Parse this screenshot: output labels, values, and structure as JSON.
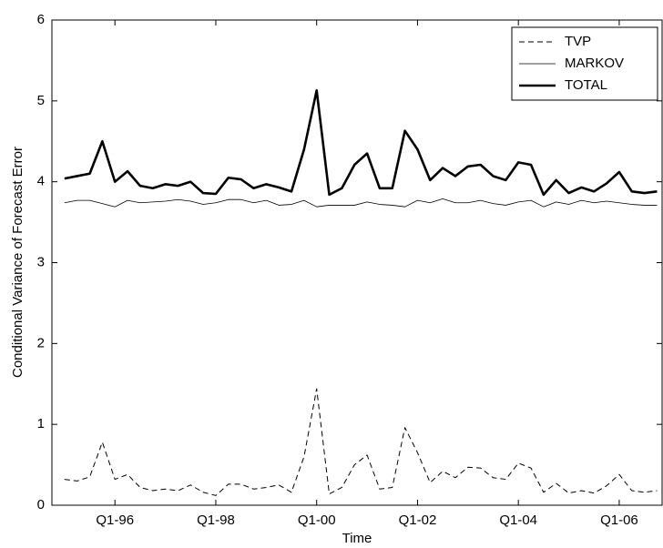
{
  "chart_data": {
    "type": "line",
    "x_label": "Time",
    "y_label": "Conditional Variance of Forecast Error",
    "x": [
      1995,
      1995.25,
      1995.5,
      1995.75,
      1996,
      1996.25,
      1996.5,
      1996.75,
      1997,
      1997.25,
      1997.5,
      1997.75,
      1998,
      1998.25,
      1998.5,
      1998.75,
      1999,
      1999.25,
      1999.5,
      1999.75,
      2000,
      2000.25,
      2000.5,
      2000.75,
      2001,
      2001.25,
      2001.5,
      2001.75,
      2002,
      2002.25,
      2002.5,
      2002.75,
      2003,
      2003.25,
      2003.5,
      2003.75,
      2004,
      2004.25,
      2004.5,
      2004.75,
      2005,
      2005.25,
      2005.5,
      2005.75,
      2006,
      2006.25,
      2006.5,
      2006.75
    ],
    "series": [
      {
        "name": "TVP",
        "color": "#000000",
        "line_style": "dashed",
        "line_width": 1,
        "values": [
          0.32,
          0.3,
          0.35,
          0.78,
          0.32,
          0.38,
          0.22,
          0.18,
          0.2,
          0.18,
          0.25,
          0.16,
          0.12,
          0.26,
          0.26,
          0.2,
          0.22,
          0.25,
          0.16,
          0.6,
          1.44,
          0.14,
          0.22,
          0.5,
          0.62,
          0.2,
          0.22,
          0.96,
          0.65,
          0.28,
          0.42,
          0.34,
          0.47,
          0.46,
          0.34,
          0.32,
          0.52,
          0.46,
          0.16,
          0.27,
          0.15,
          0.18,
          0.15,
          0.24,
          0.38,
          0.18,
          0.16,
          0.18
        ]
      },
      {
        "name": "MARKOV",
        "color": "#000000",
        "line_style": "solid",
        "line_width": 0.8,
        "values": [
          3.74,
          3.77,
          3.77,
          3.73,
          3.69,
          3.77,
          3.74,
          3.75,
          3.76,
          3.78,
          3.76,
          3.72,
          3.74,
          3.78,
          3.78,
          3.74,
          3.77,
          3.71,
          3.72,
          3.77,
          3.69,
          3.71,
          3.71,
          3.71,
          3.75,
          3.72,
          3.71,
          3.69,
          3.77,
          3.74,
          3.79,
          3.74,
          3.74,
          3.77,
          3.73,
          3.71,
          3.75,
          3.77,
          3.69,
          3.75,
          3.72,
          3.77,
          3.74,
          3.76,
          3.74,
          3.72,
          3.71,
          3.71
        ]
      },
      {
        "name": "TOTAL",
        "color": "#000000",
        "line_style": "solid",
        "line_width": 2.6,
        "values": [
          4.04,
          4.07,
          4.1,
          4.5,
          4.0,
          4.13,
          3.95,
          3.92,
          3.97,
          3.95,
          4.0,
          3.86,
          3.85,
          4.05,
          4.03,
          3.92,
          3.97,
          3.93,
          3.88,
          4.4,
          5.13,
          3.84,
          3.92,
          4.21,
          4.35,
          3.92,
          3.92,
          4.63,
          4.4,
          4.02,
          4.17,
          4.07,
          4.19,
          4.21,
          4.07,
          4.02,
          4.24,
          4.21,
          3.84,
          4.02,
          3.86,
          3.93,
          3.88,
          3.98,
          4.12,
          3.88,
          3.86,
          3.88
        ]
      }
    ],
    "xlim": [
      1994.75,
      2006.85
    ],
    "xticks": [
      {
        "value": 1996,
        "label": "Q1-96"
      },
      {
        "value": 1998,
        "label": "Q1-98"
      },
      {
        "value": 2000,
        "label": "Q1-00"
      },
      {
        "value": 2002,
        "label": "Q1-02"
      },
      {
        "value": 2004,
        "label": "Q1-04"
      },
      {
        "value": 2006,
        "label": "Q1-06"
      }
    ],
    "ylim": [
      0,
      6
    ],
    "yticks": [
      0,
      1,
      2,
      3,
      4,
      5,
      6
    ],
    "grid": false,
    "legend": "upper-right"
  }
}
